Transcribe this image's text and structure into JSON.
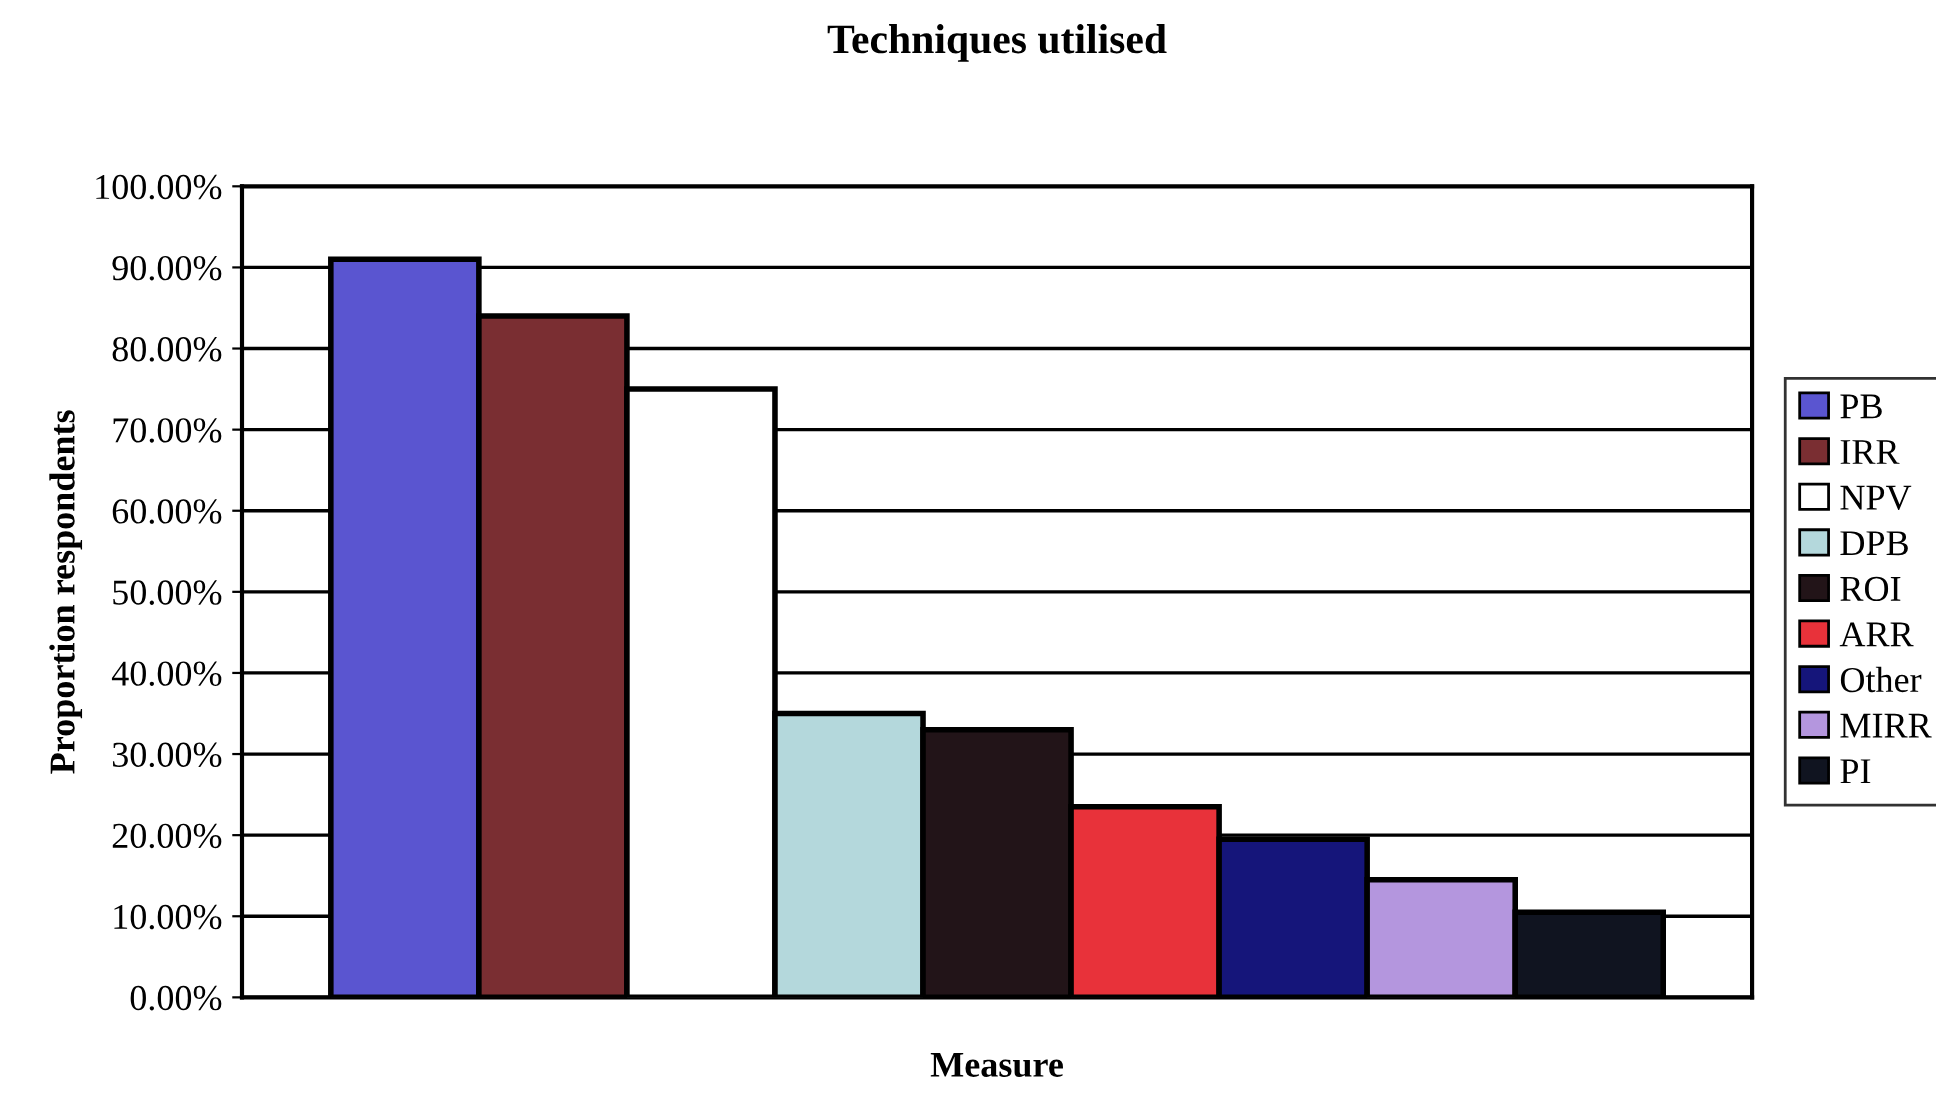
{
  "chart_data": {
    "type": "bar",
    "title": "Techniques utilised",
    "xlabel": "Measure",
    "ylabel": "Proportion respondents",
    "categories": [
      null
    ],
    "series": [
      {
        "name": "PB",
        "color": "#5a55d0",
        "values": [
          91
        ]
      },
      {
        "name": "IRR",
        "color": "#7a2e32",
        "values": [
          84
        ]
      },
      {
        "name": "NPV",
        "color": "#ffffff",
        "values": [
          75
        ]
      },
      {
        "name": "DPB",
        "color": "#b4d8dc",
        "values": [
          35
        ]
      },
      {
        "name": "ROI",
        "color": "#221418",
        "values": [
          33
        ]
      },
      {
        "name": "ARR",
        "color": "#e8323a",
        "values": [
          23.5
        ]
      },
      {
        "name": "Other",
        "color": "#15157a",
        "values": [
          19.5
        ]
      },
      {
        "name": "MIRR",
        "color": "#b496de",
        "values": [
          14.5
        ]
      },
      {
        "name": "PI",
        "color": "#101420",
        "values": [
          10.5
        ]
      }
    ],
    "ylim": [
      0,
      100
    ],
    "yticks": [
      {
        "value": 0,
        "label": "0.00%"
      },
      {
        "value": 10,
        "label": "10.00%"
      },
      {
        "value": 20,
        "label": "20.00%"
      },
      {
        "value": 30,
        "label": "30.00%"
      },
      {
        "value": 40,
        "label": "40.00%"
      },
      {
        "value": 50,
        "label": "50.00%"
      },
      {
        "value": 60,
        "label": "60.00%"
      },
      {
        "value": 70,
        "label": "70.00%"
      },
      {
        "value": 80,
        "label": "80.00%"
      },
      {
        "value": 90,
        "label": "90.00%"
      },
      {
        "value": 100,
        "label": "100.00%"
      }
    ],
    "grid": "y",
    "legend": "right"
  }
}
